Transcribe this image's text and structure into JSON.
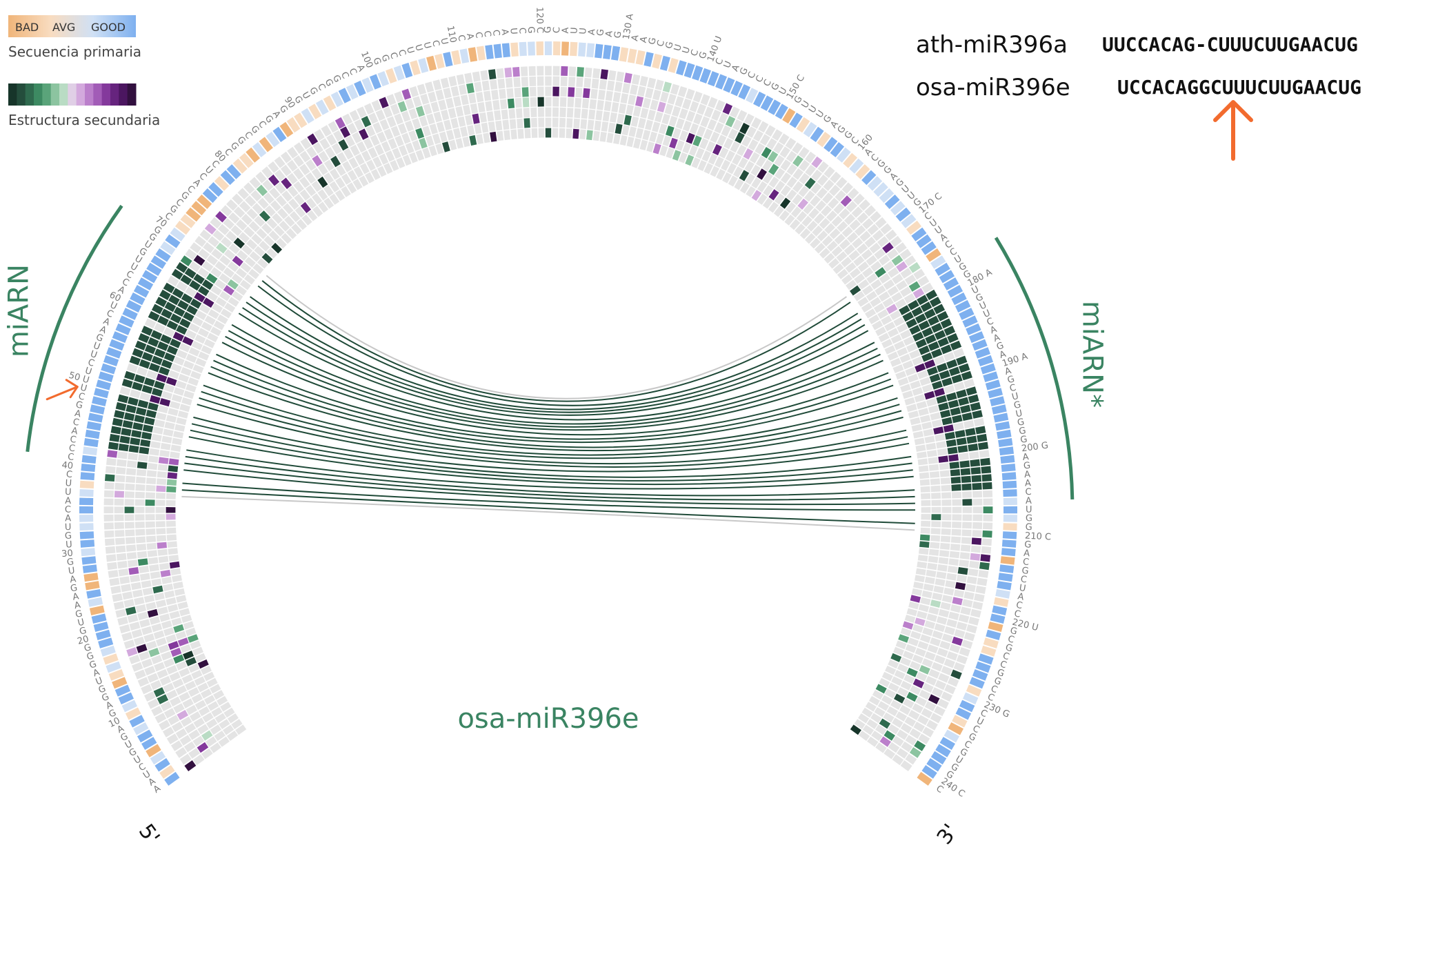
{
  "legend": {
    "primary_title": "Secuencia primaria",
    "primary_keys": [
      "BAD",
      "AVG",
      "GOOD"
    ],
    "primary_colors": [
      "#f0b57a",
      "#f8dcc0",
      "#cfe0f5",
      "#7eb0ef"
    ],
    "secondary_title": "Estructura secundaria",
    "secondary_colors": [
      "#17352a",
      "#244d3c",
      "#2f6a4e",
      "#3d8a62",
      "#5aa47a",
      "#8cc4a0",
      "#b9dcc4",
      "#e0cfe6",
      "#d3a9dd",
      "#bb7fcb",
      "#a25cb7",
      "#84399c",
      "#66247e",
      "#4b1660",
      "#32103f"
    ]
  },
  "alignment": {
    "rows": [
      {
        "name": "ath-miR396a",
        "seq": "UUCCACAG-CUUUCUUGAACUG"
      },
      {
        "name": "osa-miR396e",
        "seq": "UCCACAGGCUUUCUUGAACUG"
      }
    ]
  },
  "diagram": {
    "title": "osa-miR396e",
    "arm_5p_label": "miARN",
    "arm_3p_label": "miARN*",
    "end_5p": "5'",
    "end_3p": "3'",
    "sequence": "AAUCUGUGAUGAGGUAGGGCGUGAAGAUGCUGUACAUUCUCCCACAGCUUUCUUGAACUGACCUUGUGGCCGCGCACUCCCGGCGCGAGGGUGCGGCCACGGCCUUUCUCCACCCAUCGGGCAUUAGAGAAAGCGUUCGUCUAGCCCGUGGUUUGAGGCCACGGAGUUGGCUUACCUGGUUGUUCAAGAAAGCUGUGGGAAGAACAUGGAGACGCUACCCGCGCCGGCCUCUCGCGUGGAC",
    "tick_labels": [
      "10",
      "20",
      "30",
      "40",
      "50 U",
      "60",
      "70",
      "80",
      "90",
      "100",
      "110",
      "120 C",
      "130 A",
      "140 U",
      "150 C",
      "160",
      "170 C",
      "180 A",
      "190 A",
      "200 G",
      "210 C",
      "220 U",
      "230 G",
      "240 C"
    ],
    "pairs_count": 30,
    "accent_color": "#3a8462",
    "arrow_color": "#f26b2e",
    "track_color": "#e4e4e4",
    "link_color": "#1f4a38",
    "link_gray": "#c8c8c8"
  }
}
